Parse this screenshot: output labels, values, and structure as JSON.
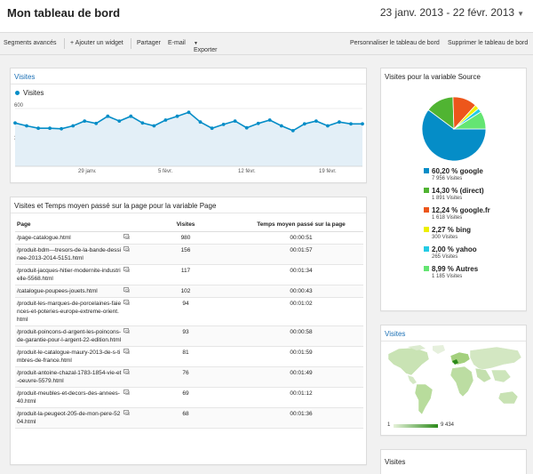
{
  "header": {
    "title": "Mon tableau de bord",
    "date_range": "23 janv. 2013 - 22 févr. 2013"
  },
  "toolbar": {
    "advanced_segments": "Segments avancés",
    "add_widget": "+ Ajouter un widget",
    "share": "Partager",
    "email": "E-mail",
    "export": "Exporter",
    "customize": "Personnaliser le tableau de bord",
    "delete": "Supprimer le tableau de bord"
  },
  "visits_widget": {
    "title": "Visites",
    "legend": "Visites",
    "y_top": "600",
    "y_mid": "300",
    "x_labels": [
      "29 janv.",
      "5 févr.",
      "12 févr.",
      "19 févr."
    ]
  },
  "chart_data": [
    {
      "type": "area",
      "title": "Visites",
      "series": [
        {
          "name": "Visites",
          "x": [
            "23 janv.",
            "24 janv.",
            "25 janv.",
            "26 janv.",
            "27 janv.",
            "28 janv.",
            "29 janv.",
            "30 janv.",
            "31 janv.",
            "1 févr.",
            "2 févr.",
            "3 févr.",
            "4 févr.",
            "5 févr.",
            "6 févr.",
            "7 févr.",
            "8 févr.",
            "9 févr.",
            "10 févr.",
            "11 févr.",
            "12 févr.",
            "13 févr.",
            "14 févr.",
            "15 févr.",
            "16 févr.",
            "17 févr.",
            "18 févr.",
            "19 févr.",
            "20 févr.",
            "21 févr.",
            "22 févr."
          ],
          "values": [
            450,
            420,
            395,
            395,
            390,
            420,
            470,
            445,
            520,
            470,
            520,
            450,
            420,
            480,
            520,
            560,
            460,
            395,
            435,
            470,
            400,
            445,
            480,
            420,
            370,
            440,
            470,
            420,
            460,
            440,
            440
          ]
        }
      ],
      "ylim": [
        0,
        600
      ],
      "y_ticks": [
        300,
        600
      ],
      "x_tick_labels": [
        "29 janv.",
        "5 févr.",
        "12 févr.",
        "19 févr."
      ],
      "color": "#058dc7",
      "fill": "#e3eff7"
    },
    {
      "type": "pie",
      "title": "Visites pour la variable Source",
      "categories": [
        "google",
        "(direct)",
        "google.fr",
        "bing",
        "yahoo",
        "Autres"
      ],
      "values": [
        7956,
        1891,
        1618,
        300,
        265,
        1185
      ],
      "percent": [
        60.2,
        14.3,
        12.24,
        2.27,
        2.0,
        8.99
      ],
      "colors": [
        "#058dc7",
        "#50b432",
        "#ed561b",
        "#edef00",
        "#24cbe5",
        "#64e572"
      ]
    }
  ],
  "source_widget": {
    "title": "Visites pour la variable Source",
    "items": [
      {
        "label": "60,20 % google",
        "sub": "7 956 Visites",
        "color": "#058dc7"
      },
      {
        "label": "14,30 % (direct)",
        "sub": "1 891 Visites",
        "color": "#50b432"
      },
      {
        "label": "12,24 % google.fr",
        "sub": "1 618 Visites",
        "color": "#ed561b"
      },
      {
        "label": "2,27 % bing",
        "sub": "300 Visites",
        "color": "#edef00"
      },
      {
        "label": "2,00 % yahoo",
        "sub": "265 Visites",
        "color": "#24cbe5"
      },
      {
        "label": "8,99 % Autres",
        "sub": "1 185 Visites",
        "color": "#64e572"
      }
    ]
  },
  "table_widget": {
    "title": "Visites et Temps moyen passé sur la page pour la variable Page",
    "headers": [
      "Page",
      "Visites",
      "Temps moyen passé sur la page"
    ],
    "rows": [
      {
        "page": "/page-catalogue.html",
        "visits": "980",
        "time": "00:00:51"
      },
      {
        "page": "/produit-bdm---tresors-de-la-bande-dessinee-2013-2014-5151.html",
        "visits": "156",
        "time": "00:01:57"
      },
      {
        "page": "/produit-jacques-hitier-modernite-industrielle-5568.html",
        "visits": "117",
        "time": "00:01:34"
      },
      {
        "page": "/catalogue-poupees-jouets.html",
        "visits": "102",
        "time": "00:00:43"
      },
      {
        "page": "/produit-les-marques-de-porcelaines-faiences-et-poteries-europe-extreme-orient.html",
        "visits": "94",
        "time": "00:01:02"
      },
      {
        "page": "/produit-poincons-d-argent-les-poincons-de-garantie-pour-l-argent-22-edition.html",
        "visits": "93",
        "time": "00:00:58"
      },
      {
        "page": "/produit-le-catalogue-maury-2013-de-s-timbres-de-france.html",
        "visits": "81",
        "time": "00:01:59"
      },
      {
        "page": "/produit-antoine-chazal-1783-1854-vie-et-oeuvre-5579.html",
        "visits": "76",
        "time": "00:01:49"
      },
      {
        "page": "/produit-meubles-et-decors-des-annees-40.html",
        "visits": "69",
        "time": "00:01:12"
      },
      {
        "page": "/produit-la-peugeot-205-de-mon-pere-5204.html",
        "visits": "68",
        "time": "00:01:36"
      }
    ]
  },
  "map_widget": {
    "title": "Visites",
    "legend_min": "1",
    "legend_max": "9 434"
  },
  "bottom_widget": {
    "title": "Visites"
  }
}
